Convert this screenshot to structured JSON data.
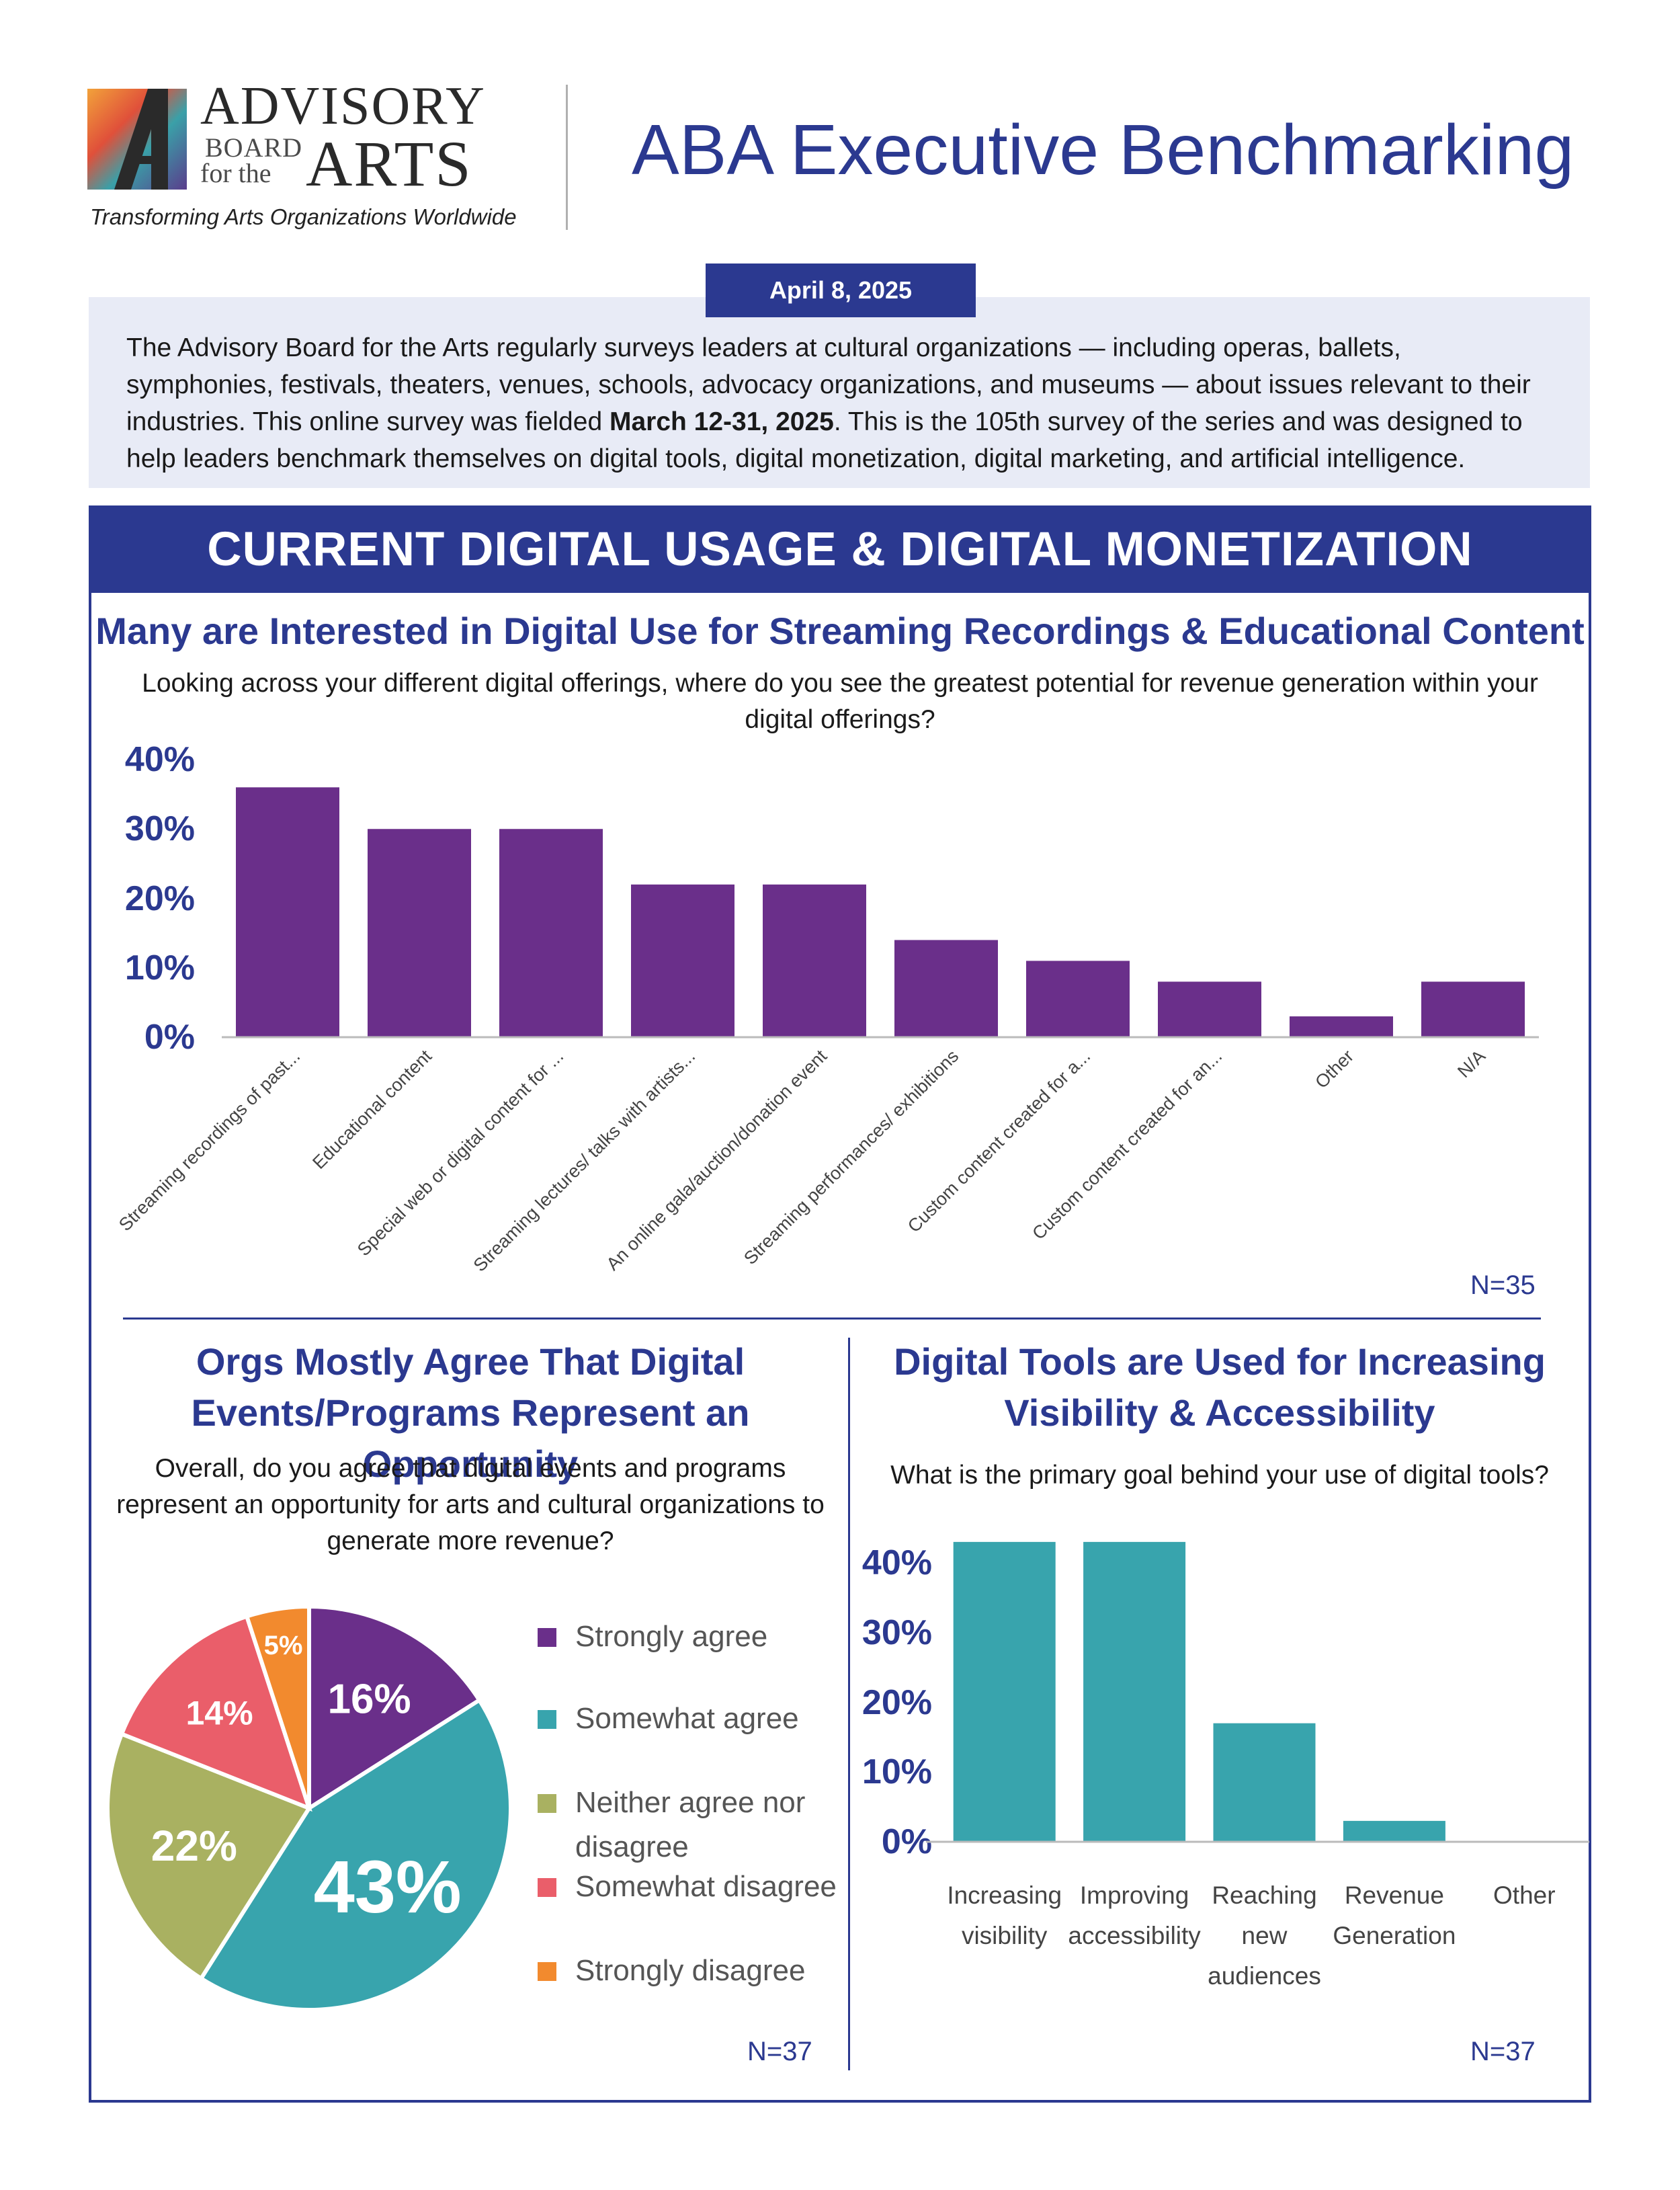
{
  "header": {
    "logo": {
      "line1": "ADVISORY",
      "line2": "BOARD",
      "line3": "for the",
      "line4": "ARTS",
      "tagline": "Transforming Arts Organizations Worldwide"
    },
    "title": "ABA Executive Benchmarking",
    "date": "April 8, 2025"
  },
  "intro": {
    "text_before": "The Advisory Board for the Arts regularly surveys leaders at cultural organizations — including operas, ballets, symphonies, festivals, theaters, venues, schools, advocacy organizations, and museums — about issues relevant to their industries. This online survey was fielded ",
    "bold": "March 12-31, 2025",
    "text_after": ". This is the 105th survey of the series and was designed to help leaders benchmark themselves on digital tools, digital monetization, digital marketing, and artificial intelligence."
  },
  "section": {
    "title": "CURRENT DIGITAL USAGE & DIGITAL MONETIZATION"
  },
  "colors": {
    "navy": "#2b3990",
    "purple": "#6a2f8a",
    "teal": "#38a4ad",
    "olive": "#a9b161",
    "coral": "#ea5e6a",
    "orange": "#f28a2e"
  },
  "chart_data": [
    {
      "type": "bar",
      "title": "Many are Interested in Digital Use for Streaming Recordings & Educational Content",
      "question": "Looking across your different digital offerings, where do you see the greatest potential for revenue generation within your digital offerings?",
      "categories": [
        "Streaming recordings of past...",
        "Educational content",
        "Special web or digital content for ...",
        "Streaming lectures/ talks with artists...",
        "An online gala/auction/donation event",
        "Streaming performances/ exhibitions",
        "Custom content created for a...",
        "Custom content created for an...",
        "Other",
        "N/A"
      ],
      "values": [
        36,
        30,
        30,
        22,
        22,
        14,
        11,
        8,
        3,
        8
      ],
      "ylim": [
        0,
        40
      ],
      "yticks": [
        "0%",
        "10%",
        "20%",
        "30%",
        "40%"
      ],
      "n_label": "N=35"
    },
    {
      "type": "pie",
      "title": "Orgs Mostly Agree That Digital Events/Programs Represent an Opportunity",
      "question": "Overall, do you agree that digital events and programs represent an opportunity for arts and cultural organizations to generate more revenue?",
      "labels": [
        "Strongly agree",
        "Somewhat agree",
        "Neither agree nor disagree",
        "Somewhat disagree",
        "Strongly disagree"
      ],
      "values": [
        16,
        43,
        22,
        14,
        5
      ],
      "value_labels": [
        "16%",
        "43%",
        "22%",
        "14%",
        "5%"
      ],
      "colors": [
        "#6a2f8a",
        "#38a4ad",
        "#a9b161",
        "#ea5e6a",
        "#f28a2e"
      ],
      "n_label": "N=37"
    },
    {
      "type": "bar",
      "title": "Digital Tools are Used for Increasing Visibility & Accessibility",
      "question": "What is the primary goal behind your use of digital tools?",
      "categories": [
        [
          "Increasing",
          "visibility"
        ],
        [
          "Improving",
          "accessibility"
        ],
        [
          "Reaching",
          "new",
          "audiences"
        ],
        [
          "Revenue",
          "Generation"
        ],
        [
          "Other"
        ]
      ],
      "values": [
        43,
        43,
        17,
        3,
        0
      ],
      "ylim": [
        0,
        40
      ],
      "yticks": [
        "0%",
        "10%",
        "20%",
        "30%",
        "40%"
      ],
      "n_label": "N=37"
    }
  ]
}
